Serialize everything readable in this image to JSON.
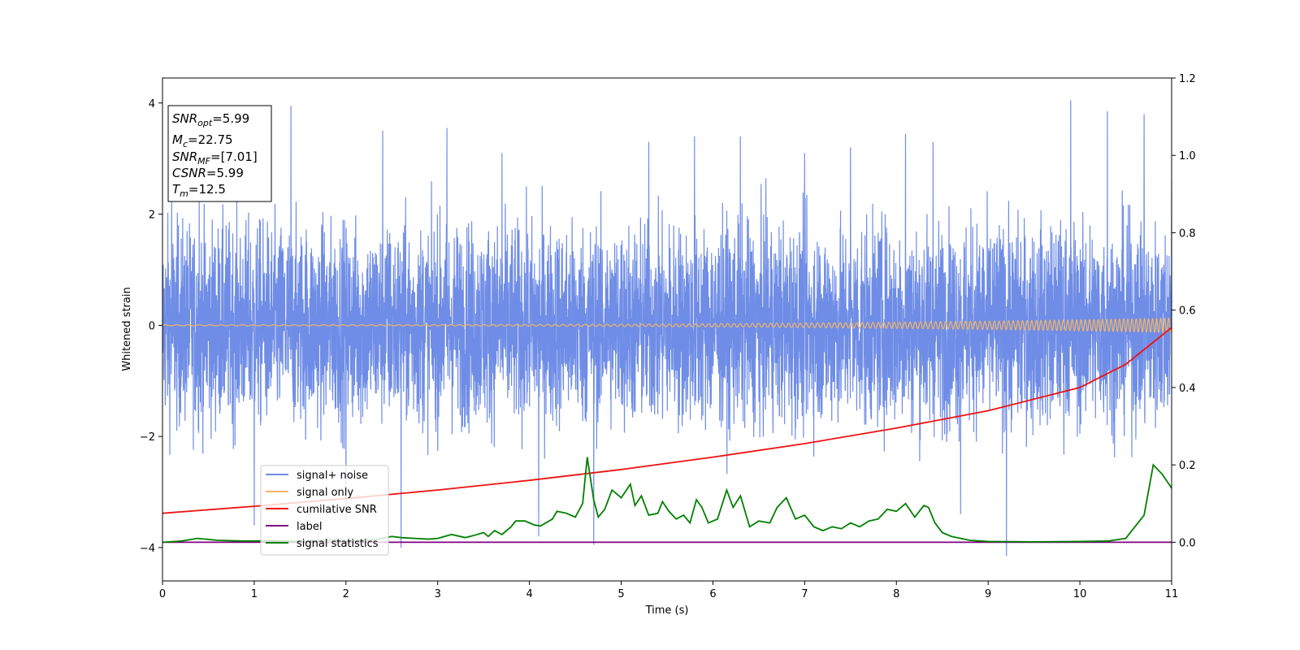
{
  "chart_data": {
    "type": "line",
    "xlabel": "Time (s)",
    "ylabel": "Whitened strain",
    "xlim": [
      0,
      11
    ],
    "ylim": [
      -4.6,
      4.45
    ],
    "y2lim": [
      -0.1,
      1.2
    ],
    "x_ticks": [
      "0",
      "1",
      "2",
      "3",
      "4",
      "5",
      "6",
      "7",
      "8",
      "9",
      "10",
      "11"
    ],
    "y_ticks": [
      "4",
      "2",
      "0",
      "−2",
      "−4"
    ],
    "y_tick_values": [
      4,
      2,
      0,
      -2,
      -4
    ],
    "y2_ticks": [
      "1.2",
      "1.0",
      "0.8",
      "0.6",
      "0.4",
      "0.2",
      "0.0"
    ],
    "y2_tick_values": [
      1.2,
      1.0,
      0.8,
      0.6,
      0.4,
      0.2,
      0.0
    ],
    "legend_position": "lower-left",
    "grid": false,
    "series": [
      {
        "name": "signal+ noise",
        "axis": "left",
        "color": "#6f8de6",
        "noise_sd": 0.9,
        "peaks": {
          "x": [
            0.1,
            0.4,
            1.0,
            1.4,
            2.0,
            2.4,
            2.6,
            3.1,
            3.7,
            4.1,
            4.7,
            5.3,
            5.8,
            6.3,
            7.0,
            7.5,
            8.1,
            8.4,
            8.7,
            9.2,
            9.9,
            10.3,
            10.7,
            11.0
          ],
          "y": [
            2.6,
            2.3,
            -3.6,
            3.95,
            -3.5,
            3.5,
            -4.0,
            3.55,
            3.1,
            -3.8,
            -3.95,
            3.3,
            3.4,
            3.4,
            3.1,
            3.2,
            3.45,
            3.3,
            -3.4,
            -4.15,
            4.05,
            3.85,
            3.8,
            2.6
          ]
        }
      },
      {
        "name": "signal only",
        "axis": "left",
        "color": "#f5b463",
        "amplitude_start": 0.01,
        "amplitude_end": 0.13
      },
      {
        "name": "cumilative SNR",
        "axis": "right",
        "color": "#ee1111",
        "x": [
          0,
          1,
          2,
          3,
          4,
          5,
          6,
          7,
          8,
          9,
          10,
          10.5,
          11
        ],
        "y": [
          0.075,
          0.093,
          0.113,
          0.135,
          0.16,
          0.188,
          0.22,
          0.255,
          0.295,
          0.34,
          0.4,
          0.46,
          0.555
        ]
      },
      {
        "name": "label",
        "axis": "right",
        "color": "#800080",
        "x": [
          0,
          11
        ],
        "y": [
          0.0,
          0.0
        ]
      },
      {
        "name": "signal statistics",
        "axis": "right",
        "color": "#008000",
        "x": [
          0,
          0.2,
          0.38,
          0.6,
          0.9,
          1.2,
          1.5,
          1.8,
          2.0,
          2.3,
          2.5,
          2.6,
          2.9,
          3.0,
          3.15,
          3.3,
          3.4,
          3.5,
          3.55,
          3.62,
          3.7,
          3.8,
          3.85,
          3.95,
          4.05,
          4.12,
          4.25,
          4.3,
          4.4,
          4.5,
          4.58,
          4.63,
          4.7,
          4.75,
          4.82,
          4.9,
          5.0,
          5.1,
          5.15,
          5.22,
          5.3,
          5.4,
          5.45,
          5.52,
          5.6,
          5.68,
          5.75,
          5.82,
          5.88,
          5.95,
          6.05,
          6.15,
          6.22,
          6.3,
          6.4,
          6.5,
          6.62,
          6.7,
          6.8,
          6.9,
          7.0,
          7.1,
          7.2,
          7.3,
          7.4,
          7.5,
          7.6,
          7.7,
          7.8,
          7.9,
          8.0,
          8.1,
          8.2,
          8.3,
          8.35,
          8.42,
          8.5,
          8.6,
          8.8,
          9.0,
          9.5,
          10.0,
          10.3,
          10.5,
          10.6,
          10.7,
          10.8,
          10.9,
          11.0
        ],
        "y": [
          0.0,
          0.003,
          0.01,
          0.005,
          0.003,
          0.004,
          0.002,
          0.006,
          0.003,
          0.006,
          0.015,
          0.012,
          0.008,
          0.01,
          0.02,
          0.012,
          0.018,
          0.025,
          0.015,
          0.03,
          0.02,
          0.04,
          0.055,
          0.055,
          0.045,
          0.042,
          0.06,
          0.08,
          0.075,
          0.065,
          0.1,
          0.22,
          0.11,
          0.065,
          0.085,
          0.135,
          0.115,
          0.15,
          0.095,
          0.12,
          0.07,
          0.075,
          0.105,
          0.08,
          0.06,
          0.07,
          0.05,
          0.11,
          0.09,
          0.05,
          0.06,
          0.135,
          0.09,
          0.12,
          0.04,
          0.055,
          0.05,
          0.09,
          0.115,
          0.06,
          0.07,
          0.04,
          0.03,
          0.04,
          0.035,
          0.05,
          0.04,
          0.055,
          0.06,
          0.085,
          0.08,
          0.1,
          0.065,
          0.095,
          0.09,
          0.05,
          0.025,
          0.015,
          0.005,
          0.002,
          0.001,
          0.002,
          0.003,
          0.01,
          0.04,
          0.07,
          0.2,
          0.175,
          0.14
        ]
      }
    ]
  },
  "info_box": {
    "line1_var": "SNR",
    "line1_sub": "opt",
    "line1_val": "=5.99",
    "line2_var": "M",
    "line2_sub": "c",
    "line2_val": "=22.75",
    "line3_var": "SNR",
    "line3_sub": "MF",
    "line3_val": "=[7.01]",
    "line4_var": "CSNR",
    "line4_val": "=5.99",
    "line5_var": "T",
    "line5_sub": "m",
    "line5_val": "=12.5"
  }
}
